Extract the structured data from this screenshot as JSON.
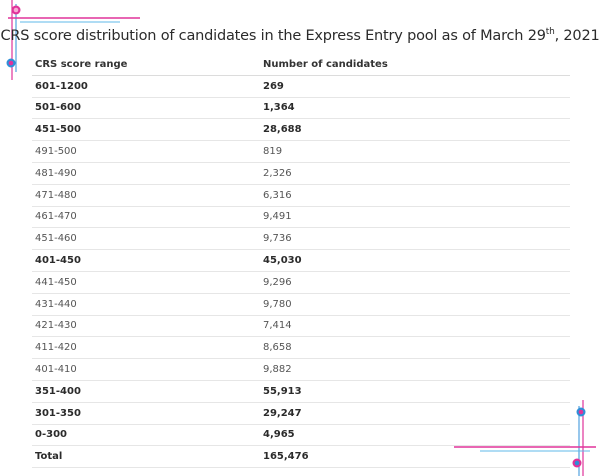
{
  "title": {
    "main": "CRS score distribution of candidates in the Express Entry pool as of March 29",
    "superscript": "th",
    "suffix": ", 2021"
  },
  "table": {
    "headers": [
      "CRS score range",
      "Number of candidates"
    ],
    "rows": [
      {
        "range": "601-1200",
        "count": "269",
        "bold": true
      },
      {
        "range": "501-600",
        "count": "1,364",
        "bold": true
      },
      {
        "range": "451-500",
        "count": "28,688",
        "bold": true
      },
      {
        "range": "491-500",
        "count": "819",
        "bold": false
      },
      {
        "range": "481-490",
        "count": "2,326",
        "bold": false
      },
      {
        "range": "471-480",
        "count": "6,316",
        "bold": false
      },
      {
        "range": "461-470",
        "count": "9,491",
        "bold": false
      },
      {
        "range": "451-460",
        "count": "9,736",
        "bold": false
      },
      {
        "range": "401-450",
        "count": "45,030",
        "bold": true
      },
      {
        "range": "441-450",
        "count": "9,296",
        "bold": false
      },
      {
        "range": "431-440",
        "count": "9,780",
        "bold": false
      },
      {
        "range": "421-430",
        "count": "7,414",
        "bold": false
      },
      {
        "range": "411-420",
        "count": "8,658",
        "bold": false
      },
      {
        "range": "401-410",
        "count": "9,882",
        "bold": false
      },
      {
        "range": "351-400",
        "count": "55,913",
        "bold": true
      },
      {
        "range": "301-350",
        "count": "29,247",
        "bold": true
      },
      {
        "range": "0-300",
        "count": "4,965",
        "bold": true
      },
      {
        "range": "Total",
        "count": "165,476",
        "bold": true
      }
    ]
  },
  "colors": {
    "accent_pink": "#e0339a",
    "accent_blue": "#2f8fd8",
    "accent_blue_light": "#5fb8e8"
  }
}
